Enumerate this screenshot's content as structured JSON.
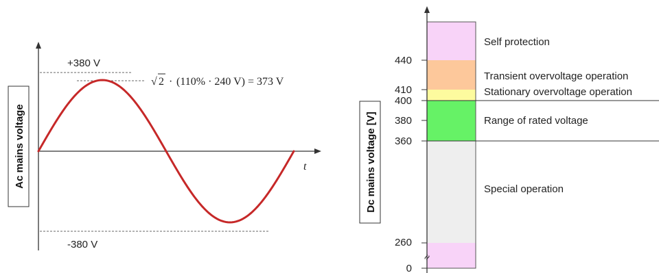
{
  "ac_diagram": {
    "y_axis_label": "Ac mains voltage",
    "x_axis_label": "t",
    "peak_positive_label": "+380 V",
    "peak_negative_label": "-380 V",
    "formula": {
      "sqrt_symbol": "√",
      "radicand": "2",
      "operator": "·",
      "expression": "(110% · 240 V) = 373 V"
    },
    "curve_color": "#c62828"
  },
  "dc_diagram": {
    "y_axis_label": "Dc mains voltage [V]",
    "ticks": [
      "440",
      "410",
      "400",
      "380",
      "360",
      "260",
      "0"
    ],
    "break_symbol": "≈",
    "bands": [
      {
        "label": "Self protection",
        "color": "#f8d3f8"
      },
      {
        "label": "Transient overvoltage operation",
        "color": "#fdc89b"
      },
      {
        "label": "Stationary overvoltage operation",
        "color": "#fdfb9e"
      },
      {
        "label": "Range of rated voltage",
        "color": "#66f266"
      },
      {
        "label": "Special operation",
        "color": "#eeeeee"
      },
      {
        "label": "",
        "color": "#f8d3f8"
      }
    ]
  }
}
